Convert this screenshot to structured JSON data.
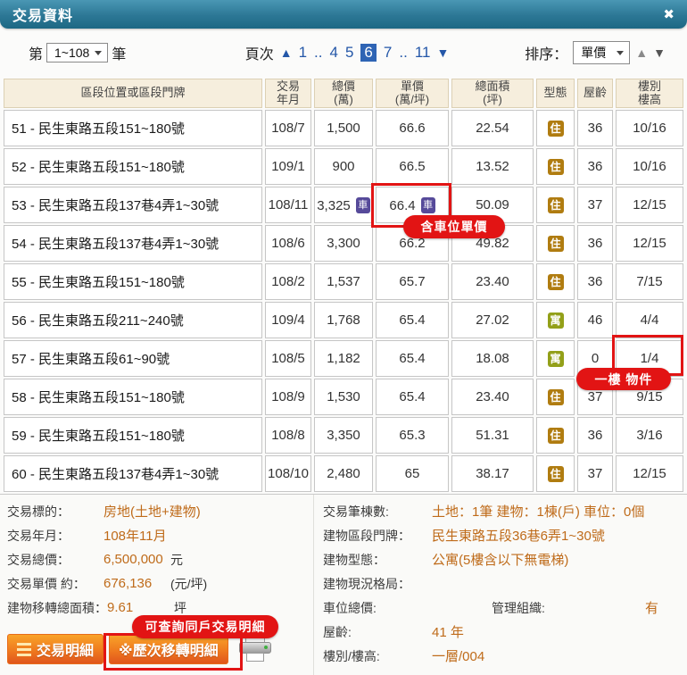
{
  "window": {
    "title": "交易資料",
    "close_icon": "✖"
  },
  "controls": {
    "per_page": {
      "prefix": "第",
      "value": "1~108",
      "suffix": "筆"
    },
    "pagination": {
      "label": "頁次",
      "prev_icon": "▲",
      "next_icon": "▼",
      "pages": [
        "1",
        "..",
        "4",
        "5",
        "6",
        "7",
        "..",
        "11"
      ],
      "current": "6"
    },
    "sort": {
      "label": "排序：",
      "value": "單價",
      "asc_icon": "▲",
      "desc_icon": "▼"
    }
  },
  "table": {
    "headers": [
      "區段位置或區段門牌",
      "交易\n年月",
      "總價\n(萬)",
      "單價\n(萬/坪)",
      "總面積\n(坪)",
      "型態",
      "屋齡",
      "樓別\n樓高"
    ],
    "car_badge_label": "車",
    "rows": [
      {
        "no": "51",
        "address": "民生東路五段151~180號",
        "date": "108/7",
        "total": "1,500",
        "unit": "66.6",
        "area": "22.54",
        "type": "住",
        "age": "36",
        "floor": "10/16",
        "total_car": false,
        "unit_car": false
      },
      {
        "no": "52",
        "address": "民生東路五段151~180號",
        "date": "109/1",
        "total": "900",
        "unit": "66.5",
        "area": "13.52",
        "type": "住",
        "age": "36",
        "floor": "10/16",
        "total_car": false,
        "unit_car": false
      },
      {
        "no": "53",
        "address": "民生東路五段137巷4弄1~30號",
        "date": "108/11",
        "total": "3,325",
        "unit": "66.4",
        "area": "50.09",
        "type": "住",
        "age": "37",
        "floor": "12/15",
        "total_car": true,
        "unit_car": true
      },
      {
        "no": "54",
        "address": "民生東路五段137巷4弄1~30號",
        "date": "108/6",
        "total": "3,300",
        "unit": "66.2",
        "area": "49.82",
        "type": "住",
        "age": "36",
        "floor": "12/15",
        "total_car": false,
        "unit_car": false
      },
      {
        "no": "55",
        "address": "民生東路五段151~180號",
        "date": "108/2",
        "total": "1,537",
        "unit": "65.7",
        "area": "23.40",
        "type": "住",
        "age": "36",
        "floor": "7/15",
        "total_car": false,
        "unit_car": false
      },
      {
        "no": "56",
        "address": "民生東路五段211~240號",
        "date": "109/4",
        "total": "1,768",
        "unit": "65.4",
        "area": "27.02",
        "type": "寓",
        "age": "46",
        "floor": "4/4",
        "total_car": false,
        "unit_car": false
      },
      {
        "no": "57",
        "address": "民生東路五段61~90號",
        "date": "108/5",
        "total": "1,182",
        "unit": "65.4",
        "area": "18.08",
        "type": "寓",
        "age": "0",
        "floor": "1/4",
        "total_car": false,
        "unit_car": false
      },
      {
        "no": "58",
        "address": "民生東路五段151~180號",
        "date": "108/9",
        "total": "1,530",
        "unit": "65.4",
        "area": "23.40",
        "type": "住",
        "age": "37",
        "floor": "9/15",
        "total_car": false,
        "unit_car": false
      },
      {
        "no": "59",
        "address": "民生東路五段151~180號",
        "date": "108/8",
        "total": "3,350",
        "unit": "65.3",
        "area": "51.31",
        "type": "住",
        "age": "36",
        "floor": "3/16",
        "total_car": false,
        "unit_car": false
      },
      {
        "no": "60",
        "address": "民生東路五段137巷4弄1~30號",
        "date": "108/10",
        "total": "2,480",
        "unit": "65",
        "area": "38.17",
        "type": "住",
        "age": "37",
        "floor": "12/15",
        "total_car": false,
        "unit_car": false
      }
    ]
  },
  "details": {
    "left": [
      {
        "label": "交易標的：",
        "value": "房地(土地+建物)",
        "unit": ""
      },
      {
        "label": "交易年月：",
        "value": "108年11月",
        "unit": ""
      },
      {
        "label": "交易總價：",
        "value": "6,500,000",
        "unit": "元"
      },
      {
        "label": "交易單價 約：",
        "value": "676,136",
        "unit": "(元/坪)"
      },
      {
        "label": "建物移轉總面積：",
        "value": "9.61",
        "unit": "坪"
      }
    ],
    "right": [
      {
        "label": "交易筆棟數:",
        "value": "土地：1筆 建物：1棟(戶) 車位：0個"
      },
      {
        "label": "建物區段門牌：",
        "value": "民生東路五段36巷6弄1~30號"
      },
      {
        "label": "建物型態：",
        "value": "公寓(5樓含以下無電梯)"
      },
      {
        "label": "建物現況格局：",
        "value": ""
      },
      {
        "label": "車位總價:",
        "value": "",
        "label2": "管理組織:",
        "value2": "有"
      },
      {
        "label": "屋齡:",
        "value": "41 年"
      },
      {
        "label": "樓別/樓高:",
        "value": "一層/004"
      }
    ]
  },
  "footer": {
    "detail_button": "交易明細",
    "history_button": "※歷次移轉明細"
  },
  "annotations": {
    "unit_price_callout": "含車位單價",
    "first_floor_callout": "一樓 物件",
    "history_callout": "可查詢同戶交易明細"
  },
  "colors": {
    "header_teal": "#2c7795",
    "accent_orange": "#bf6b1a",
    "annotation_red": "#e21414",
    "link_blue": "#2457a8",
    "type_colors": {
      "住": "#b07c10",
      "寓": "#93a019"
    },
    "car_badge": "#564a9a"
  }
}
